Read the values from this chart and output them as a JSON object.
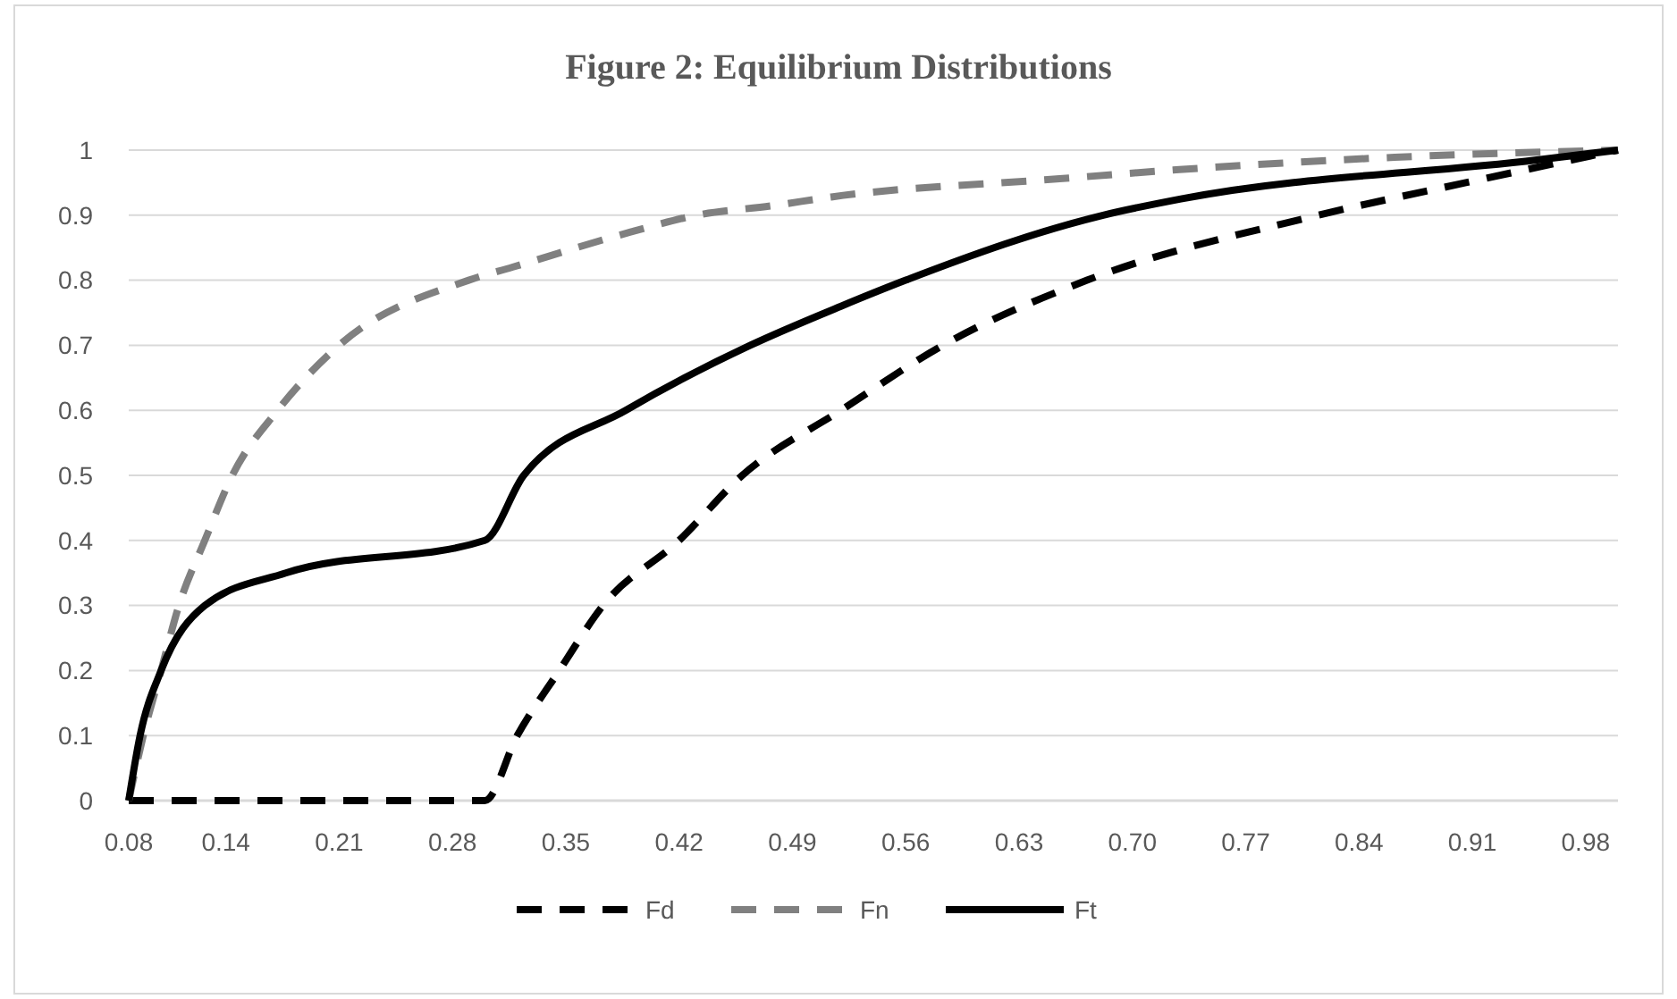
{
  "chart_data": {
    "type": "line",
    "title": "Figure 2: Equilibrium Distributions",
    "xlim": [
      0.08,
      1.0
    ],
    "ylim": [
      0,
      1
    ],
    "xticks": [
      0.08,
      0.14,
      0.21,
      0.28,
      0.35,
      0.42,
      0.49,
      0.56,
      0.63,
      {
        "value": 0.7,
        "label": "0.70"
      },
      0.77,
      0.84,
      0.91,
      0.98
    ],
    "yticks": [
      0,
      0.1,
      0.2,
      0.3,
      0.4,
      0.5,
      0.6,
      0.7,
      0.8,
      0.9,
      1
    ],
    "grid": "y",
    "legend": "bottom",
    "series": [
      {
        "name": "Fd",
        "color": "#000000",
        "line_style": "dashed",
        "x": [
          0.08,
          0.3,
          0.32,
          0.346,
          0.373,
          0.42,
          0.459,
          0.52,
          0.583,
          0.672,
          0.815,
          0.906,
          1.0
        ],
        "values": [
          0,
          0,
          0.1,
          0.2,
          0.3,
          0.4,
          0.5,
          0.6,
          0.7,
          0.8,
          0.9,
          0.95,
          1
        ]
      },
      {
        "name": "Fn",
        "color": "#808080",
        "line_style": "dashed",
        "x": [
          0.08,
          0.089,
          0.1,
          0.111,
          0.127,
          0.144,
          0.172,
          0.21,
          0.29,
          0.317,
          0.39,
          0.431,
          0.479,
          0.514,
          0.655,
          0.729,
          0.862,
          1.0
        ],
        "values": [
          0,
          0.1,
          0.2,
          0.3,
          0.4,
          0.5,
          0.6,
          0.7,
          0.8,
          0.82,
          0.874,
          0.9,
          0.915,
          0.928,
          0.956,
          0.97,
          0.989,
          1
        ]
      },
      {
        "name": "Ft",
        "color": "#000000",
        "line_style": "solid",
        "x": [
          0.08,
          0.087,
          0.1,
          0.127,
          0.177,
          0.3,
          0.324,
          0.387,
          0.464,
          0.52,
          0.56,
          0.682,
          0.73,
          0.95,
          1.0
        ],
        "values": [
          0,
          0.1,
          0.2,
          0.3,
          0.35,
          0.4,
          0.5,
          0.6,
          0.7,
          0.76,
          0.8,
          0.9,
          0.925,
          0.985,
          1
        ]
      }
    ]
  }
}
